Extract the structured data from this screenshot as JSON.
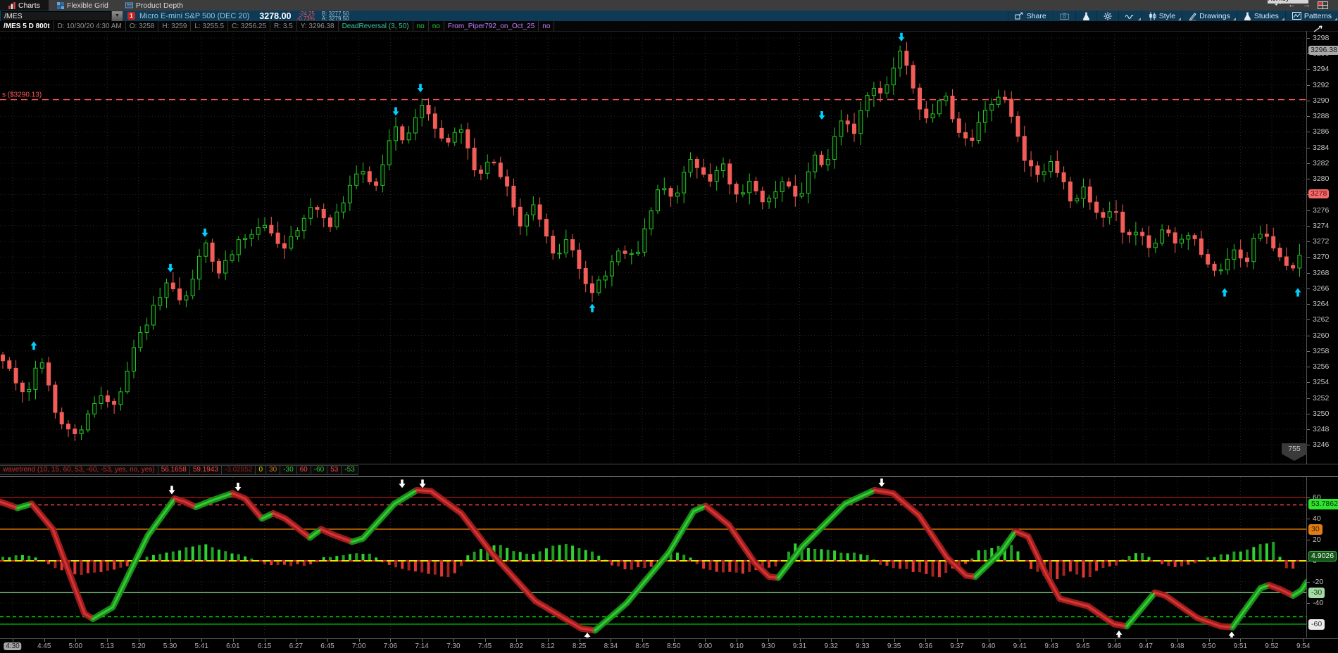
{
  "titlebar": {
    "tabs": [
      {
        "label": "Charts",
        "active": true
      },
      {
        "label": "Flexible Grid",
        "active": false
      },
      {
        "label": "Product Depth",
        "active": false
      }
    ],
    "nav": {
      "undo": "↶",
      "back": "←",
      "forward": "→"
    },
    "tooltip_fragment": "Hot key"
  },
  "symbol_bar": {
    "symbol": "/MES",
    "link_badge": "1",
    "description": "Micro E-mini S&P 500 (DEC 20)",
    "last_price": "3278.00",
    "change": "-24.25",
    "change_pct": "-0.73%",
    "bid": "B: 3277.50",
    "ask": "A: 3279.50",
    "share_label": "Share",
    "menu_buttons": [
      {
        "label": "Style"
      },
      {
        "label": "Drawings"
      },
      {
        "label": "Studies"
      },
      {
        "label": "Patterns"
      }
    ]
  },
  "status_row": {
    "symbol_spec": "/MES 5 D 800t",
    "fields": [
      "D: 10/30/20 4:30 AM",
      "O: 3258",
      "H: 3259",
      "L: 3255.5",
      "C: 3256.25",
      "R: 3.5",
      "Y: 3296.38"
    ],
    "tokens": [
      {
        "text": "DeadReversal (3, 50)",
        "color": "#35c4a2"
      },
      {
        "text": "no",
        "color": "#2fc62f"
      },
      {
        "text": "no",
        "color": "#2fc62f"
      },
      {
        "text": "From_Piper792_on_Oct_25",
        "color": "#c77dff"
      },
      {
        "text": "no",
        "color": "#c77dff"
      }
    ]
  },
  "study_row": {
    "label": "wavetrend (10, 15, 60, 53, -60, -53, yes, no, yes)",
    "label_color": "#cc2a2a",
    "values": [
      {
        "text": "56.1658",
        "color": "#ff4747"
      },
      {
        "text": "59.1943",
        "color": "#ff4747"
      },
      {
        "text": "-3.02852",
        "color": "#8f2020"
      },
      {
        "text": "0",
        "color": "#d6d600"
      },
      {
        "text": "30",
        "color": "#d07818"
      },
      {
        "text": "-30",
        "color": "#2fc62f"
      },
      {
        "text": "60",
        "color": "#ff4747"
      },
      {
        "text": "-60",
        "color": "#2fc62f"
      },
      {
        "text": "53",
        "color": "#ff4747"
      },
      {
        "text": "-53",
        "color": "#2fc62f"
      }
    ]
  },
  "chart_data": {
    "type": "candlestick",
    "symbol": "/MES",
    "counter_badge": "755",
    "alert_line": {
      "label": "s ($3290.13)",
      "price": 3290.13,
      "color": "#ff5a5a"
    },
    "price_axis": {
      "labels": [
        3298,
        3296,
        3294,
        3292,
        3290,
        3288,
        3286,
        3284,
        3282,
        3280,
        3278,
        3276,
        3274,
        3272,
        3270,
        3268,
        3266,
        3264,
        3262,
        3260,
        3258,
        3256,
        3254,
        3252,
        3250,
        3248,
        3246
      ],
      "bubbles": [
        {
          "text": "3296.38",
          "price": 3296.38,
          "bg": "#a8a8a8",
          "fg": "#1c1c1c"
        },
        {
          "text": "3278",
          "price": 3278,
          "bg": "#f56a6a",
          "fg": "#5c0f0f"
        }
      ]
    },
    "price_anchors": [
      [
        4,
        3257
      ],
      [
        20,
        3254
      ],
      [
        36,
        3252
      ],
      [
        56,
        3257
      ],
      [
        80,
        3250
      ],
      [
        109,
        3247
      ],
      [
        145,
        3253
      ],
      [
        164,
        3250.5
      ],
      [
        190,
        3259
      ],
      [
        242,
        3267
      ],
      [
        260,
        3264
      ],
      [
        291,
        3271.5
      ],
      [
        309,
        3268
      ],
      [
        340,
        3272
      ],
      [
        376,
        3274.5
      ],
      [
        400,
        3271
      ],
      [
        448,
        3277
      ],
      [
        467,
        3274
      ],
      [
        509,
        3281
      ],
      [
        533,
        3279
      ],
      [
        561,
        3287
      ],
      [
        576,
        3284.5
      ],
      [
        596,
        3289.5
      ],
      [
        615,
        3287
      ],
      [
        630,
        3284.5
      ],
      [
        654,
        3286
      ],
      [
        679,
        3280.5
      ],
      [
        703,
        3282.5
      ],
      [
        739,
        3274.5
      ],
      [
        757,
        3276.5
      ],
      [
        788,
        3270
      ],
      [
        806,
        3272
      ],
      [
        836,
        3265
      ],
      [
        860,
        3267.5
      ],
      [
        879,
        3271.5
      ],
      [
        903,
        3270
      ],
      [
        939,
        3279.5
      ],
      [
        957,
        3277.5
      ],
      [
        982,
        3283
      ],
      [
        1006,
        3279.5
      ],
      [
        1024,
        3282
      ],
      [
        1048,
        3277
      ],
      [
        1066,
        3280
      ],
      [
        1085,
        3276.5
      ],
      [
        1115,
        3280
      ],
      [
        1133,
        3277
      ],
      [
        1157,
        3283.5
      ],
      [
        1170,
        3281
      ],
      [
        1194,
        3288
      ],
      [
        1212,
        3285.5
      ],
      [
        1236,
        3292.5
      ],
      [
        1254,
        3291
      ],
      [
        1279,
        3296.5
      ],
      [
        1303,
        3290
      ],
      [
        1321,
        3287
      ],
      [
        1339,
        3291
      ],
      [
        1363,
        3285.5
      ],
      [
        1381,
        3284.5
      ],
      [
        1399,
        3289
      ],
      [
        1424,
        3291
      ],
      [
        1454,
        3283
      ],
      [
        1478,
        3280
      ],
      [
        1496,
        3282.5
      ],
      [
        1521,
        3277
      ],
      [
        1539,
        3279
      ],
      [
        1563,
        3274.5
      ],
      [
        1581,
        3276
      ],
      [
        1600,
        3272
      ],
      [
        1618,
        3274
      ],
      [
        1636,
        3271
      ],
      [
        1654,
        3273.5
      ],
      [
        1672,
        3271.5
      ],
      [
        1690,
        3273.5
      ],
      [
        1709,
        3270
      ],
      [
        1733,
        3268
      ],
      [
        1751,
        3271.5
      ],
      [
        1769,
        3269.5
      ],
      [
        1787,
        3273.5
      ],
      [
        1805,
        3271.5
      ],
      [
        1824,
        3269.5
      ],
      [
        1842,
        3268.5
      ],
      [
        1852,
        3272.5
      ]
    ],
    "signal_arrows": [
      [
        48,
        3259.5,
        "up"
      ],
      [
        242,
        3267.8,
        "down"
      ],
      [
        291,
        3272.3,
        "down"
      ],
      [
        562,
        3287.8,
        "down"
      ],
      [
        597,
        3290.8,
        "down"
      ],
      [
        841,
        3264.3,
        "up"
      ],
      [
        1167,
        3287.3,
        "down"
      ],
      [
        1280,
        3297.3,
        "down"
      ],
      [
        1739,
        3266.3,
        "up"
      ],
      [
        1843,
        3266.3,
        "up"
      ]
    ],
    "candle_colors": {
      "up": "#26c626",
      "down": "#f25d58"
    },
    "wavetrend": {
      "ylim": [
        -75,
        85
      ],
      "levels": [
        {
          "v": 60,
          "color": "#8f1414",
          "style": "solid"
        },
        {
          "v": 53,
          "color": "#ff4040",
          "style": "dashed"
        },
        {
          "v": 30,
          "color": "#cf7000",
          "style": "solid"
        },
        {
          "v": 0,
          "color": "#e6e600",
          "style": "solid"
        },
        {
          "v": -30,
          "color": "#7ec87e",
          "style": "solid"
        },
        {
          "v": -53,
          "color": "#00d800",
          "style": "dashed"
        },
        {
          "v": -60,
          "color": "#00a000",
          "style": "solid"
        }
      ],
      "axis_labels": [
        {
          "text": "60",
          "v": 60
        },
        {
          "text": "40",
          "v": 40
        },
        {
          "text": "20",
          "v": 20
        },
        {
          "text": "0",
          "v": 0
        },
        {
          "text": "-20",
          "v": -20
        },
        {
          "text": "-40",
          "v": -40
        }
      ],
      "bubbles": [
        {
          "text": "53.7862",
          "v": 53.8,
          "bg": "#2ee52e",
          "fg": "#06300a",
          "border": "#2ee52e"
        },
        {
          "text": "30",
          "v": 30,
          "bg": "#e07d15",
          "fg": "#3a2000",
          "border": "#e07d15"
        },
        {
          "text": "4.9026",
          "v": 4.9,
          "bg": "#17541c",
          "fg": "#eaffea",
          "border": "#37c23c"
        },
        {
          "text": "-30",
          "v": -30,
          "bg": "#a5dca5",
          "fg": "#173017",
          "border": "#a5dca5"
        },
        {
          "text": "-60",
          "v": -60,
          "bg": "#ececec",
          "fg": "#2e2e2e",
          "border": "#ececec"
        }
      ],
      "ribbon": [
        [
          0,
          56
        ],
        [
          25,
          50
        ],
        [
          45,
          54
        ],
        [
          75,
          30
        ],
        [
          120,
          -50
        ],
        [
          132,
          -55
        ],
        [
          160,
          -44
        ],
        [
          210,
          24
        ],
        [
          248,
          59
        ],
        [
          262,
          56
        ],
        [
          278,
          51
        ],
        [
          300,
          57
        ],
        [
          330,
          64
        ],
        [
          348,
          59
        ],
        [
          372,
          40
        ],
        [
          388,
          45
        ],
        [
          405,
          40
        ],
        [
          440,
          22
        ],
        [
          456,
          30
        ],
        [
          472,
          25
        ],
        [
          500,
          18
        ],
        [
          515,
          21
        ],
        [
          560,
          54
        ],
        [
          592,
          67
        ],
        [
          612,
          66
        ],
        [
          655,
          45
        ],
        [
          700,
          6
        ],
        [
          760,
          -38
        ],
        [
          825,
          -64
        ],
        [
          845,
          -66
        ],
        [
          890,
          -40
        ],
        [
          950,
          8
        ],
        [
          985,
          47
        ],
        [
          1002,
          52
        ],
        [
          1035,
          34
        ],
        [
          1072,
          -2
        ],
        [
          1092,
          -15
        ],
        [
          1105,
          -16
        ],
        [
          1140,
          14
        ],
        [
          1200,
          54
        ],
        [
          1242,
          67
        ],
        [
          1268,
          64
        ],
        [
          1305,
          43
        ],
        [
          1345,
          3
        ],
        [
          1372,
          -14
        ],
        [
          1385,
          -15
        ],
        [
          1422,
          9
        ],
        [
          1442,
          28
        ],
        [
          1460,
          23
        ],
        [
          1485,
          -12
        ],
        [
          1505,
          -36
        ],
        [
          1545,
          -43
        ],
        [
          1582,
          -60
        ],
        [
          1600,
          -62
        ],
        [
          1640,
          -30
        ],
        [
          1655,
          -33
        ],
        [
          1700,
          -54
        ],
        [
          1733,
          -62
        ],
        [
          1750,
          -63
        ],
        [
          1790,
          -26
        ],
        [
          1802,
          -23
        ],
        [
          1818,
          -27
        ],
        [
          1836,
          -33
        ],
        [
          1848,
          -28
        ],
        [
          1856,
          -20
        ]
      ],
      "histogram": [
        [
          10,
          4
        ],
        [
          40,
          6
        ],
        [
          70,
          -4
        ],
        [
          95,
          -10
        ],
        [
          110,
          -14
        ],
        [
          150,
          -9
        ],
        [
          190,
          -4
        ],
        [
          210,
          5
        ],
        [
          250,
          10
        ],
        [
          290,
          16
        ],
        [
          320,
          9
        ],
        [
          350,
          4
        ],
        [
          375,
          -3
        ],
        [
          410,
          -4
        ],
        [
          445,
          -4
        ],
        [
          460,
          3
        ],
        [
          490,
          6
        ],
        [
          525,
          7
        ],
        [
          550,
          -4
        ],
        [
          575,
          -8
        ],
        [
          605,
          -12
        ],
        [
          635,
          -16
        ],
        [
          650,
          -10
        ],
        [
          665,
          6
        ],
        [
          690,
          13
        ],
        [
          710,
          16
        ],
        [
          730,
          10
        ],
        [
          755,
          6
        ],
        [
          775,
          12
        ],
        [
          800,
          17
        ],
        [
          820,
          12
        ],
        [
          845,
          8
        ],
        [
          870,
          -5
        ],
        [
          890,
          -8
        ],
        [
          915,
          -6
        ],
        [
          930,
          -4
        ],
        [
          945,
          4
        ],
        [
          960,
          8
        ],
        [
          975,
          6
        ],
        [
          995,
          -6
        ],
        [
          1020,
          -10
        ],
        [
          1050,
          -12
        ],
        [
          1080,
          -9
        ],
        [
          1105,
          -5
        ],
        [
          1115,
          5
        ],
        [
          1130,
          18
        ],
        [
          1150,
          12
        ],
        [
          1175,
          10
        ],
        [
          1200,
          8
        ],
        [
          1230,
          6
        ],
        [
          1255,
          -5
        ],
        [
          1285,
          -8
        ],
        [
          1310,
          -12
        ],
        [
          1330,
          -17
        ],
        [
          1350,
          -8
        ],
        [
          1370,
          -4
        ],
        [
          1390,
          10
        ],
        [
          1415,
          13
        ],
        [
          1440,
          15
        ],
        [
          1460,
          -6
        ],
        [
          1480,
          -14
        ],
        [
          1495,
          -20
        ],
        [
          1520,
          -10
        ],
        [
          1545,
          -18
        ],
        [
          1560,
          -8
        ],
        [
          1585,
          -4
        ],
        [
          1605,
          6
        ],
        [
          1625,
          8
        ],
        [
          1645,
          -3
        ],
        [
          1670,
          -6
        ],
        [
          1690,
          -4
        ],
        [
          1715,
          3
        ],
        [
          1740,
          6
        ],
        [
          1765,
          10
        ],
        [
          1790,
          16
        ],
        [
          1810,
          18
        ],
        [
          1822,
          -4
        ],
        [
          1832,
          -10
        ],
        [
          1842,
          -5
        ],
        [
          1852,
          8
        ]
      ],
      "arrows": [
        [
          244,
          63,
          "down"
        ],
        [
          338,
          66,
          "down"
        ],
        [
          571,
          69,
          "down"
        ],
        [
          600,
          69,
          "down"
        ],
        [
          834,
          -68,
          "up"
        ],
        [
          1252,
          70,
          "down"
        ],
        [
          1589,
          -66,
          "up"
        ],
        [
          1749,
          -67,
          "up"
        ]
      ]
    },
    "time_axis": {
      "labels": [
        "4:30",
        "4:45",
        "5:00",
        "5:13",
        "5:20",
        "5:30",
        "5:41",
        "6:01",
        "6:15",
        "6:27",
        "6:45",
        "7:00",
        "7:06",
        "7:14",
        "7:30",
        "7:45",
        "8:02",
        "8:12",
        "8:25",
        "8:34",
        "8:45",
        "8:50",
        "9:00",
        "9:10",
        "9:30",
        "9:31",
        "9:32",
        "9:33",
        "9:35",
        "9:36",
        "9:37",
        "9:40",
        "9:41",
        "9:43",
        "9:45",
        "9:46",
        "9:47",
        "9:48",
        "9:50",
        "9:51",
        "9:52",
        "9:54"
      ]
    }
  }
}
